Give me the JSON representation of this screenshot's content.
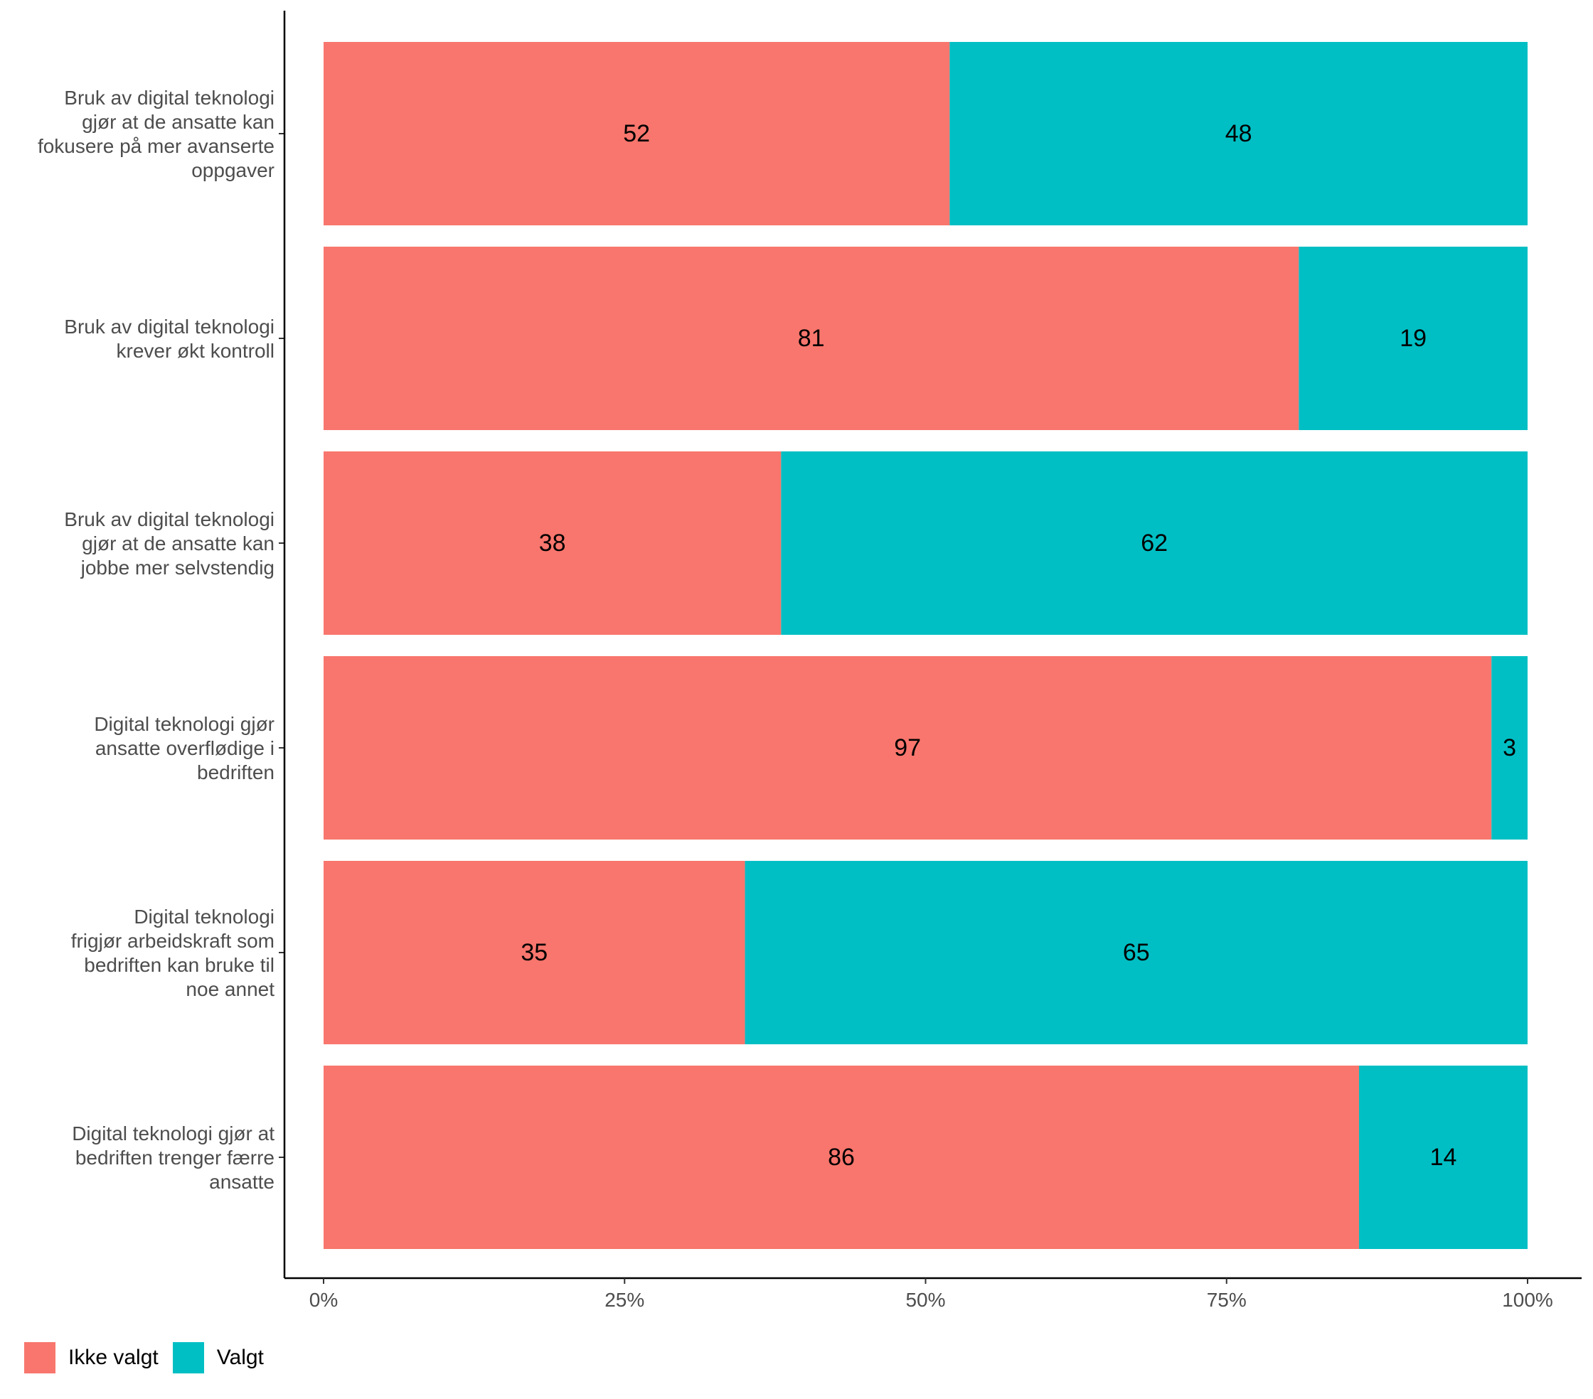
{
  "chart_data": {
    "type": "bar",
    "orientation": "horizontal",
    "stacked": "percent",
    "categories": [
      "Bruk av digital teknologi gjør at de ansatte kan fokusere på mer avanserte oppgaver",
      "Bruk av digital teknologi krever økt kontroll",
      "Bruk av digital teknologi gjør at de ansatte kan jobbe mer selvstendig",
      "Digital teknologi gjør ansatte overflødige i bedriften",
      "Digital teknologi frigjør arbeidskraft som bedriften kan bruke til noe annet",
      "Digital teknologi gjør at bedriften trenger færre ansatte"
    ],
    "category_lines": [
      [
        "Bruk av digital teknologi",
        "gjør at de ansatte kan",
        "fokusere på mer avanserte",
        "oppgaver"
      ],
      [
        "Bruk av digital teknologi",
        "krever økt kontroll"
      ],
      [
        "Bruk av digital teknologi",
        "gjør at de ansatte kan",
        "jobbe mer selvstendig"
      ],
      [
        "Digital teknologi gjør",
        "ansatte overflødige i",
        "bedriften"
      ],
      [
        "Digital teknologi",
        "frigjør arbeidskraft som",
        "bedriften kan bruke til",
        "noe annet"
      ],
      [
        "Digital teknologi gjør at",
        "bedriften trenger færre",
        "ansatte"
      ]
    ],
    "series": [
      {
        "name": "Ikke valgt",
        "color": "#F8766D",
        "values": [
          52,
          81,
          38,
          97,
          35,
          86
        ]
      },
      {
        "name": "Valgt",
        "color": "#00BFC4",
        "values": [
          48,
          19,
          62,
          3,
          65,
          14
        ]
      }
    ],
    "x_ticks": [
      "0%",
      "25%",
      "50%",
      "75%",
      "100%"
    ],
    "xlim": [
      0,
      100
    ],
    "xlabel": "",
    "ylabel": "",
    "grid": false,
    "legend_position": "bottom-left"
  }
}
